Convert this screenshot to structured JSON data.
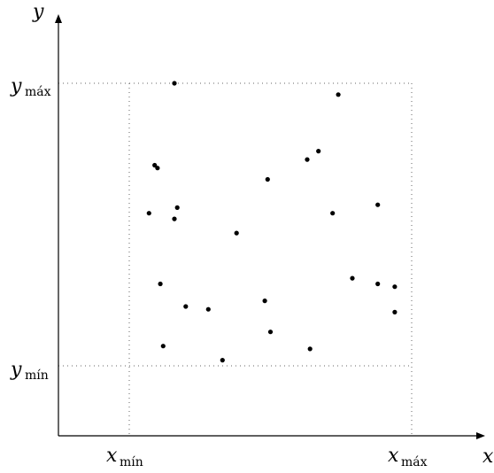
{
  "axes": {
    "x_label": "x",
    "y_label": "y"
  },
  "bounds": {
    "x_min": {
      "base": "x",
      "sub": "mín"
    },
    "x_max": {
      "base": "x",
      "sub": "máx"
    },
    "y_min": {
      "base": "y",
      "sub": "mín"
    },
    "y_max": {
      "base": "y",
      "sub": "máx"
    }
  },
  "chart_data": {
    "type": "scatter",
    "xlim": [
      0,
      1
    ],
    "ylim": [
      0,
      1
    ],
    "grid": false,
    "points": [
      [
        0.16,
        1.0
      ],
      [
        0.74,
        0.96
      ],
      [
        0.88,
        0.57
      ],
      [
        0.63,
        0.73
      ],
      [
        0.67,
        0.76
      ],
      [
        0.09,
        0.71
      ],
      [
        0.1,
        0.7
      ],
      [
        0.49,
        0.66
      ],
      [
        0.17,
        0.56
      ],
      [
        0.72,
        0.54
      ],
      [
        0.07,
        0.54
      ],
      [
        0.16,
        0.52
      ],
      [
        0.38,
        0.47
      ],
      [
        0.79,
        0.31
      ],
      [
        0.88,
        0.29
      ],
      [
        0.94,
        0.28
      ],
      [
        0.11,
        0.29
      ],
      [
        0.48,
        0.23
      ],
      [
        0.2,
        0.21
      ],
      [
        0.28,
        0.2
      ],
      [
        0.94,
        0.19
      ],
      [
        0.5,
        0.12
      ],
      [
        0.12,
        0.07
      ],
      [
        0.64,
        0.06
      ],
      [
        0.33,
        0.02
      ]
    ]
  }
}
